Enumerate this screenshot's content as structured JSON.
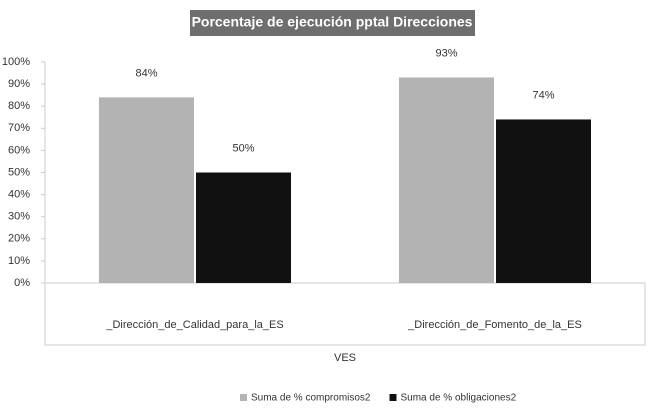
{
  "chart_data": {
    "type": "bar",
    "title": "Porcentaje de ejecución pptal Direcciones",
    "x_label": "VES",
    "categories": [
      "_Dirección_de_Calidad_para_la_ES",
      "_Dirección_de_Fomento_de_la_ES"
    ],
    "series": [
      {
        "name": "Suma de % compromisos2",
        "color": "#b3b3b3",
        "values": [
          84,
          93
        ],
        "value_labels": [
          "84%",
          "93%"
        ]
      },
      {
        "name": "Suma de % obligaciones2",
        "color": "#111111",
        "values": [
          50,
          74
        ],
        "value_labels": [
          "50%",
          "74%"
        ]
      }
    ],
    "ylim": [
      0,
      100
    ],
    "yticks": [
      {
        "value": 0,
        "label": "0%"
      },
      {
        "value": 10,
        "label": "10%"
      },
      {
        "value": 20,
        "label": "20%"
      },
      {
        "value": 30,
        "label": "30%"
      },
      {
        "value": 40,
        "label": "40%"
      },
      {
        "value": 50,
        "label": "50%"
      },
      {
        "value": 60,
        "label": "60%"
      },
      {
        "value": 70,
        "label": "70%"
      },
      {
        "value": 80,
        "label": "80%"
      },
      {
        "value": 90,
        "label": "90%"
      },
      {
        "value": 100,
        "label": "100%"
      }
    ],
    "legend": "bottom"
  }
}
